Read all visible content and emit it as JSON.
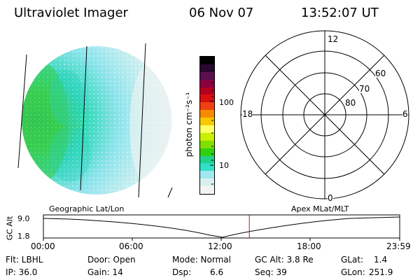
{
  "header": {
    "instrument": "Ultraviolet Imager",
    "date": "06 Nov 07",
    "time": "13:52:07 UT"
  },
  "colorbar": {
    "unit_label": "photon cm⁻²s⁻¹",
    "tick_labels": [
      "100",
      "10"
    ],
    "colors": [
      "#000000",
      "#2a0830",
      "#5a1050",
      "#8a0040",
      "#b30020",
      "#d81010",
      "#f04010",
      "#f68a00",
      "#f8c800",
      "#ffff66",
      "#c8f000",
      "#80e000",
      "#30d010",
      "#20d08a",
      "#30e0c8",
      "#a0e8f0",
      "#d8f0f0",
      "#f4f4f4"
    ]
  },
  "polar_plot": {
    "mlt_labels": {
      "top": "12",
      "left": "18",
      "right": "6",
      "bottom": "0"
    },
    "lat_labels": [
      "60",
      "70",
      "80"
    ]
  },
  "timeline": {
    "left_label": "Geographic Lat/Lon",
    "right_label": "Apex MLat/MLT",
    "axis_title": "GC Alt",
    "y_ticks": [
      "9.0",
      "1.8"
    ],
    "time_ticks": [
      "00:00",
      "06:00",
      "12:00",
      "18:00",
      "23:59"
    ],
    "current_time_fraction": 0.578,
    "marker_color": "#e00000"
  },
  "footer": {
    "row1": {
      "filter": "Flt: LBHL",
      "door": "Door: Open",
      "mode": "Mode: Normal",
      "gc_alt": "GC Alt: 3.8 Re",
      "glat_label": "GLat:",
      "glat_value": "1.4"
    },
    "row2": {
      "ip": "IP: 36.0",
      "gain": "Gain: 14",
      "dsp_label": "Dsp:",
      "dsp_value": "6.6",
      "seq": "Seq: 39",
      "glon_label": "GLon:",
      "glon_value": "251.9"
    }
  }
}
